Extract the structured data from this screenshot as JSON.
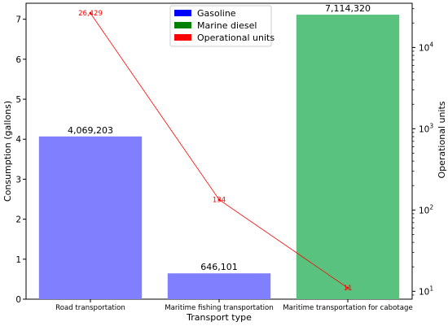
{
  "chart_data": {
    "type": "bar",
    "title": "",
    "xlabel": "Transport type",
    "ylabel": "Consumption (gallons)",
    "y2label": "Operational units",
    "categories": [
      "Road transportation",
      "Maritime fishing transportation",
      "Maritime transportation for cabotage"
    ],
    "bars": [
      {
        "category": "Road transportation",
        "fuel": "Gasoline",
        "value_millions": 4.069203,
        "label": "4,069,203"
      },
      {
        "category": "Maritime fishing transportation",
        "fuel": "Gasoline",
        "value_millions": 0.646101,
        "label": "646,101"
      },
      {
        "category": "Maritime transportation for cabotage",
        "fuel": "Marine diesel",
        "value_millions": 7.11432,
        "label": "7,114,320"
      }
    ],
    "ylim": [
      0,
      7.4
    ],
    "y_ticks": [
      "0",
      "1",
      "2",
      "3",
      "4",
      "5",
      "6",
      "7"
    ],
    "line_series": {
      "name": "Operational units",
      "values": [
        26429,
        134,
        11
      ],
      "labels": [
        "26,429",
        "134",
        "11"
      ],
      "y2_scale": "log",
      "y2lim": [
        8,
        35000
      ],
      "y2_ticks": [
        {
          "value": 10,
          "base": "10",
          "exp": "1"
        },
        {
          "value": 100,
          "base": "10",
          "exp": "2"
        },
        {
          "value": 1000,
          "base": "10",
          "exp": "3"
        },
        {
          "value": 10000,
          "base": "10",
          "exp": "4"
        }
      ]
    },
    "legend": {
      "position": "top-center",
      "items": [
        {
          "label": "Gasoline",
          "color": "#0000ff"
        },
        {
          "label": "Marine diesel",
          "color": "#008000"
        },
        {
          "label": "Operational units",
          "color": "#ff0000"
        }
      ]
    },
    "colors": {
      "Gasoline": "#8080ff",
      "Marine diesel": "#58c27e",
      "line": "#ff0000"
    }
  }
}
